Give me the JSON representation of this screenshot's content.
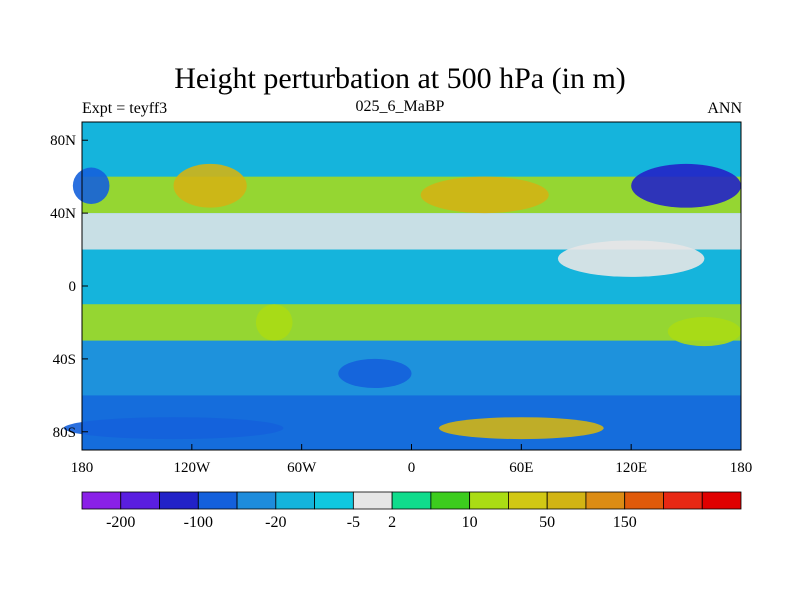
{
  "chart_data": {
    "type": "heatmap",
    "title": "Height perturbation at 500 hPa (in m)",
    "left_label": "Expt = teyff3",
    "center_label": "025_6_MaBP",
    "right_label": "ANN",
    "x_ticks": [
      "180",
      "120W",
      "60W",
      "0",
      "60E",
      "120E",
      "180"
    ],
    "y_ticks": [
      "80N",
      "40N",
      "0",
      "40S",
      "80S"
    ],
    "xlim": [
      -180,
      180
    ],
    "ylim": [
      -90,
      90
    ],
    "colorbar": {
      "levels": [
        "-200",
        "-100",
        "-20",
        "-5",
        "2",
        "10",
        "50",
        "150"
      ],
      "colors": [
        "#8a20e8",
        "#5a1ee0",
        "#2222c8",
        "#1460dc",
        "#1e8cdc",
        "#14b4dc",
        "#10c8e0",
        "#e6e6e6",
        "#10dc8c",
        "#3ccc1e",
        "#aadc14",
        "#d2c814",
        "#d2b414",
        "#dc8c14",
        "#e05a0a",
        "#e82814",
        "#e00000"
      ]
    },
    "regions": [
      {
        "lon": 150,
        "lat": 55,
        "rx": 30,
        "ry": 12,
        "v": -120
      },
      {
        "lon": -175,
        "lat": 55,
        "rx": 10,
        "ry": 10,
        "v": -60
      },
      {
        "lon": -20,
        "lat": -48,
        "rx": 20,
        "ry": 8,
        "v": -80
      },
      {
        "lon": -130,
        "lat": -78,
        "rx": 60,
        "ry": 6,
        "v": -70
      },
      {
        "lon": -110,
        "lat": 55,
        "rx": 20,
        "ry": 12,
        "v": 60
      },
      {
        "lon": 40,
        "lat": 50,
        "rx": 35,
        "ry": 10,
        "v": 50
      },
      {
        "lon": 60,
        "lat": -78,
        "rx": 45,
        "ry": 6,
        "v": 55
      },
      {
        "lon": -75,
        "lat": -20,
        "rx": 10,
        "ry": 10,
        "v": 20
      },
      {
        "lon": 160,
        "lat": -25,
        "rx": 20,
        "ry": 8,
        "v": 15
      },
      {
        "lon": 120,
        "lat": 15,
        "rx": 40,
        "ry": 10,
        "v": 0
      }
    ]
  }
}
